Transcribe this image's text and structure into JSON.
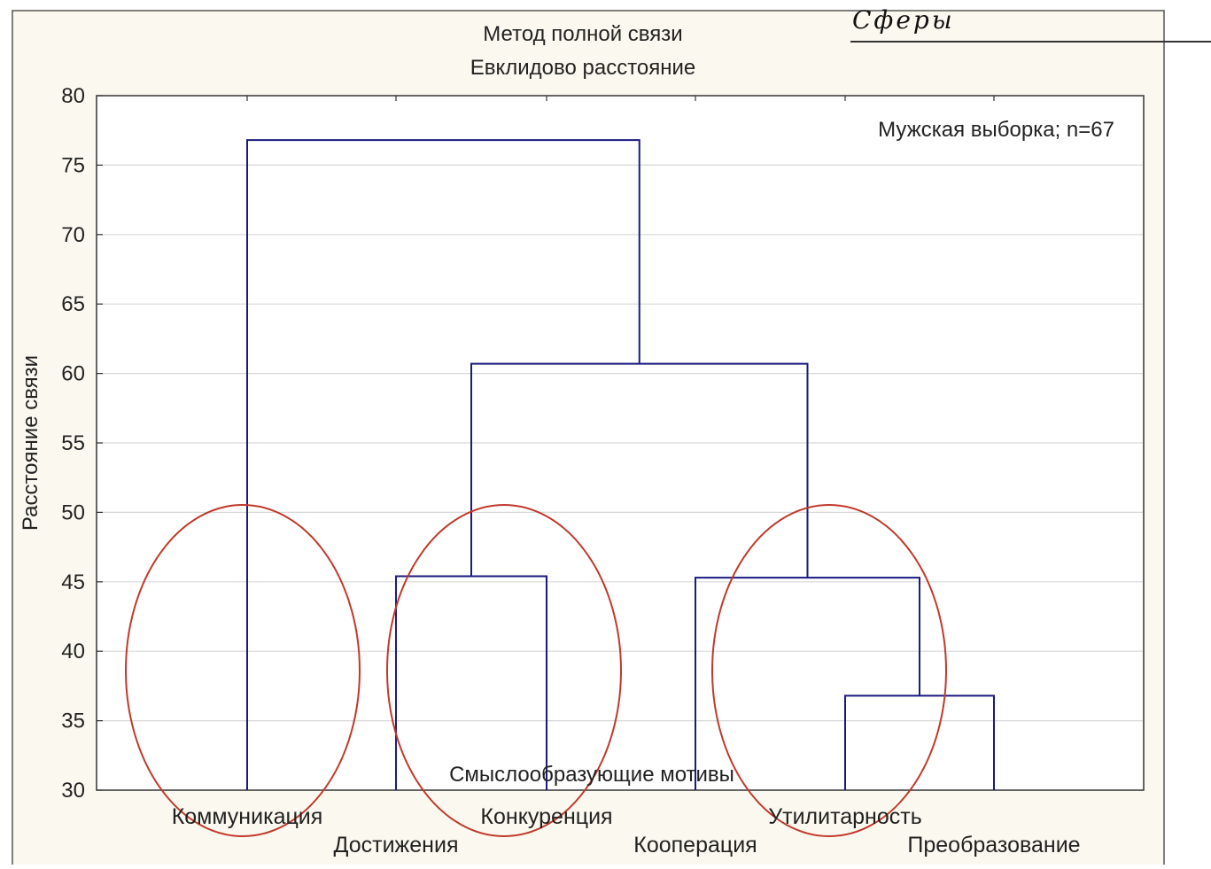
{
  "corner_label": "Сферы",
  "chart_data": {
    "type": "dendrogram",
    "title": "Метод полной связи",
    "subtitle": "Евклидово расстояние",
    "ylabel": "Расстояние связи",
    "xlabel": "Смыслообразующие мотивы",
    "annotation": "Мужская выборка; n=67",
    "ylim": [
      30,
      80
    ],
    "yticks": [
      30,
      35,
      40,
      45,
      50,
      55,
      60,
      65,
      70,
      75,
      80
    ],
    "grid": true,
    "leaves": [
      "Коммуникация",
      "Достижения",
      "Конкуренция",
      "Кооперация",
      "Утилитарность",
      "Преобразование"
    ],
    "merges": [
      {
        "a": "Утилитарность",
        "b": "Преобразование",
        "height": 36.8
      },
      {
        "a": "Достижения",
        "b": "Конкуренция",
        "height": 45.4
      },
      {
        "a": "Кооперация",
        "b": "Утилитарность+Преобразование",
        "height": 45.3
      },
      {
        "a": "Достижения+Конкуренция",
        "b": "Кооперация+Утилитарность+Преобразование",
        "height": 60.7
      },
      {
        "a": "Коммуникация",
        "b": "Достижения+Конкуренция+Кооперация+Утилитарность+Преобразование",
        "height": 76.8
      }
    ],
    "highlight_groups": [
      [
        "Коммуникация"
      ],
      [
        "Достижения",
        "Конкуренция"
      ],
      [
        "Кооперация",
        "Утилитарность",
        "Преобразование"
      ]
    ],
    "colors": {
      "tree": "#1a1a80",
      "highlight": "#c0392b",
      "grid": "#d8d8d8",
      "panel": "#fbf9ef"
    }
  }
}
